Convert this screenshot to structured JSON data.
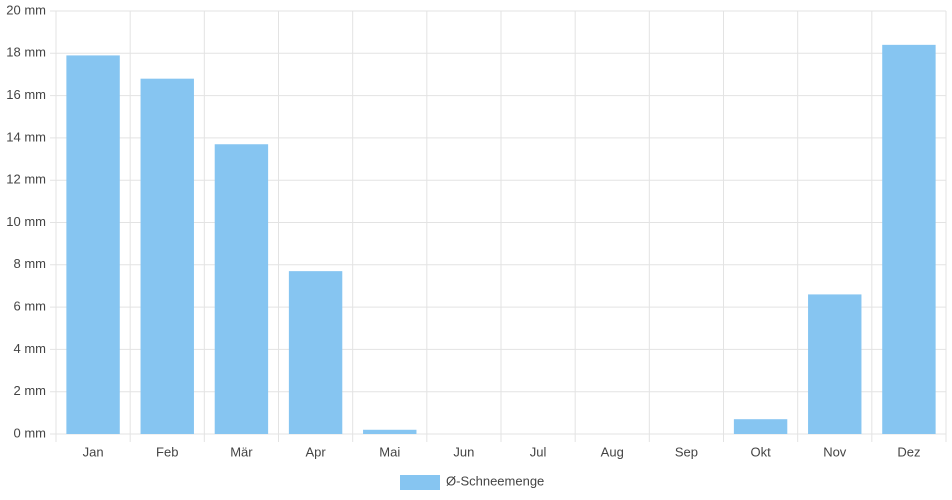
{
  "chart_data": {
    "type": "bar",
    "categories": [
      "Jan",
      "Feb",
      "Mär",
      "Apr",
      "Mai",
      "Jun",
      "Jul",
      "Aug",
      "Sep",
      "Okt",
      "Nov",
      "Dez"
    ],
    "series": [
      {
        "name": "Ø-Schneemenge",
        "color": "#86c5f1",
        "values": [
          17.9,
          16.8,
          13.7,
          7.7,
          0.2,
          0,
          0,
          0,
          0,
          0.7,
          6.6,
          18.4
        ]
      }
    ],
    "ylim": [
      0,
      20
    ],
    "yticks": [
      {
        "value": 0,
        "label": "0 mm"
      },
      {
        "value": 2,
        "label": "2 mm"
      },
      {
        "value": 4,
        "label": "4 mm"
      },
      {
        "value": 6,
        "label": "6 mm"
      },
      {
        "value": 8,
        "label": "8 mm"
      },
      {
        "value": 10,
        "label": "10 mm"
      },
      {
        "value": 12,
        "label": "12 mm"
      },
      {
        "value": 14,
        "label": "14 mm"
      },
      {
        "value": 16,
        "label": "16 mm"
      },
      {
        "value": 18,
        "label": "18 mm"
      },
      {
        "value": 20,
        "label": "20 mm"
      }
    ],
    "grid": true,
    "legend": "bottom"
  }
}
